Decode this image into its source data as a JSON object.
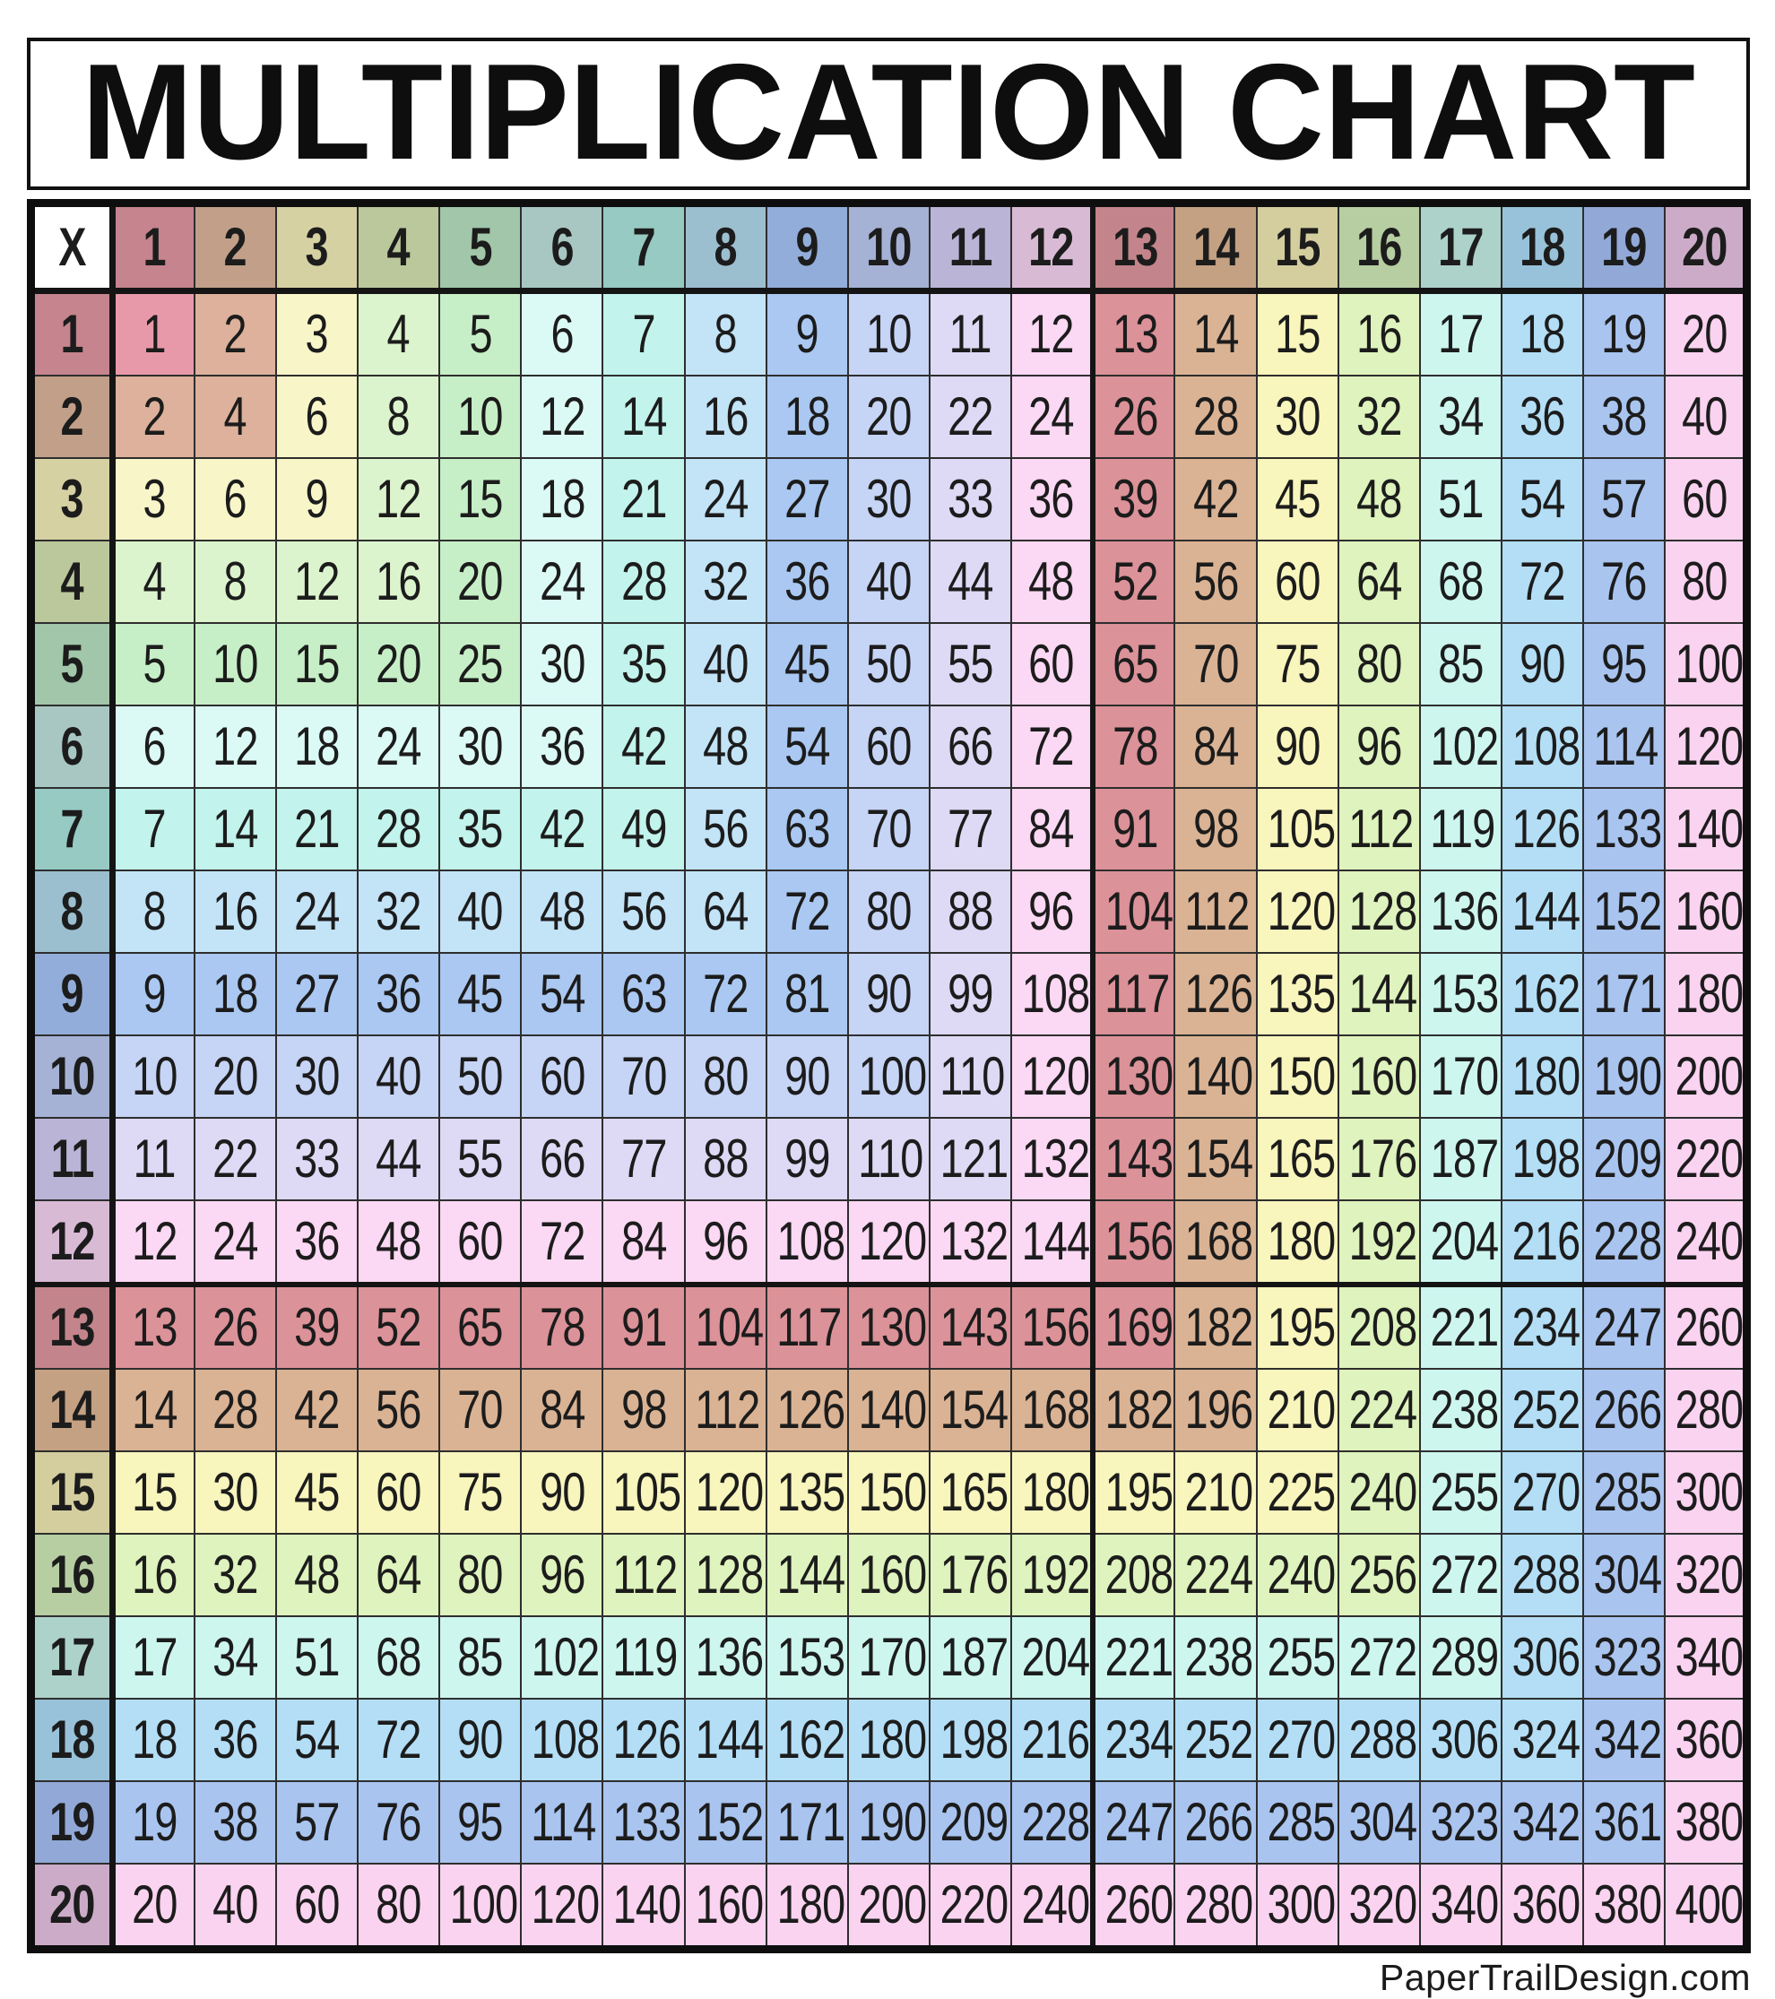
{
  "title": "MULTIPLICATION CHART",
  "footer": {
    "text": "PaperTrailDesign.com"
  },
  "chart_data": {
    "type": "table",
    "title": "MULTIPLICATION CHART",
    "corner_label": "X",
    "col_headers": [
      1,
      2,
      3,
      4,
      5,
      6,
      7,
      8,
      9,
      10,
      11,
      12,
      13,
      14,
      15,
      16,
      17,
      18,
      19,
      20
    ],
    "row_headers": [
      1,
      2,
      3,
      4,
      5,
      6,
      7,
      8,
      9,
      10,
      11,
      12,
      13,
      14,
      15,
      16,
      17,
      18,
      19,
      20
    ],
    "values": [
      [
        1,
        2,
        3,
        4,
        5,
        6,
        7,
        8,
        9,
        10,
        11,
        12,
        13,
        14,
        15,
        16,
        17,
        18,
        19,
        20
      ],
      [
        2,
        4,
        6,
        8,
        10,
        12,
        14,
        16,
        18,
        20,
        22,
        24,
        26,
        28,
        30,
        32,
        34,
        36,
        38,
        40
      ],
      [
        3,
        6,
        9,
        12,
        15,
        18,
        21,
        24,
        27,
        30,
        33,
        36,
        39,
        42,
        45,
        48,
        51,
        54,
        57,
        60
      ],
      [
        4,
        8,
        12,
        16,
        20,
        24,
        28,
        32,
        36,
        40,
        44,
        48,
        52,
        56,
        60,
        64,
        68,
        72,
        76,
        80
      ],
      [
        5,
        10,
        15,
        20,
        25,
        30,
        35,
        40,
        45,
        50,
        55,
        60,
        65,
        70,
        75,
        80,
        85,
        90,
        95,
        100
      ],
      [
        6,
        12,
        18,
        24,
        30,
        36,
        42,
        48,
        54,
        60,
        66,
        72,
        78,
        84,
        90,
        96,
        102,
        108,
        114,
        120
      ],
      [
        7,
        14,
        21,
        28,
        35,
        42,
        49,
        56,
        63,
        70,
        77,
        84,
        91,
        98,
        105,
        112,
        119,
        126,
        133,
        140
      ],
      [
        8,
        16,
        24,
        32,
        40,
        48,
        56,
        64,
        72,
        80,
        88,
        96,
        104,
        112,
        120,
        128,
        136,
        144,
        152,
        160
      ],
      [
        9,
        18,
        27,
        36,
        45,
        54,
        63,
        72,
        81,
        90,
        99,
        108,
        117,
        126,
        135,
        144,
        153,
        162,
        171,
        180
      ],
      [
        10,
        20,
        30,
        40,
        50,
        60,
        70,
        80,
        90,
        100,
        110,
        120,
        130,
        140,
        150,
        160,
        170,
        180,
        190,
        200
      ],
      [
        11,
        22,
        33,
        44,
        55,
        66,
        77,
        88,
        99,
        110,
        121,
        132,
        143,
        154,
        165,
        176,
        187,
        198,
        209,
        220
      ],
      [
        12,
        24,
        36,
        48,
        60,
        72,
        84,
        96,
        108,
        120,
        132,
        144,
        156,
        168,
        180,
        192,
        204,
        216,
        228,
        240
      ],
      [
        13,
        26,
        39,
        52,
        65,
        78,
        91,
        104,
        117,
        130,
        143,
        156,
        169,
        182,
        195,
        208,
        221,
        234,
        247,
        260
      ],
      [
        14,
        28,
        42,
        56,
        70,
        84,
        98,
        112,
        126,
        140,
        154,
        168,
        182,
        196,
        210,
        224,
        238,
        252,
        266,
        280
      ],
      [
        15,
        30,
        45,
        60,
        75,
        90,
        105,
        120,
        135,
        150,
        165,
        180,
        195,
        210,
        225,
        240,
        255,
        270,
        285,
        300
      ],
      [
        16,
        32,
        48,
        64,
        80,
        96,
        112,
        128,
        144,
        160,
        176,
        192,
        208,
        224,
        240,
        256,
        272,
        288,
        304,
        320
      ],
      [
        17,
        34,
        51,
        68,
        85,
        102,
        119,
        136,
        153,
        170,
        187,
        204,
        221,
        238,
        255,
        272,
        289,
        306,
        323,
        340
      ],
      [
        18,
        36,
        54,
        72,
        90,
        108,
        126,
        144,
        162,
        180,
        198,
        216,
        234,
        252,
        270,
        288,
        306,
        324,
        342,
        360
      ],
      [
        19,
        38,
        57,
        76,
        95,
        114,
        133,
        152,
        171,
        190,
        209,
        228,
        247,
        266,
        285,
        304,
        323,
        342,
        361,
        380
      ],
      [
        20,
        40,
        60,
        80,
        100,
        120,
        140,
        160,
        180,
        200,
        220,
        240,
        260,
        280,
        300,
        320,
        340,
        360,
        380,
        400
      ]
    ],
    "color_rule": "cell color index = max(row, col)",
    "colors": {
      "corner_bg": "#ffffff",
      "grid_line": "#2e2e2e",
      "thick_line": "#141414",
      "text": "#1c1c1c",
      "body_palette": [
        "#e899a9",
        "#ddb19b",
        "#f8f6c9",
        "#dcf4cd",
        "#c7efc7",
        "#dcfaf5",
        "#c2f3ec",
        "#c3e3f7",
        "#aac8f1",
        "#c6d4f6",
        "#ded9f5",
        "#fbd8f3",
        "#db9298",
        "#dab394",
        "#f8f5bd",
        "#def3bd",
        "#cdf6ef",
        "#b3def6",
        "#a9c4ef",
        "#fad3f0"
      ],
      "header_palette": [
        "#c5848e",
        "#c19f88",
        "#d6d1a2",
        "#bac89c",
        "#a1c6a9",
        "#a8c7c3",
        "#96cac3",
        "#9cbfd0",
        "#92add9",
        "#a5b2d5",
        "#bab4d6",
        "#d9bad5",
        "#c3858b",
        "#c4a182",
        "#d4ce9f",
        "#b6cea2",
        "#add2ca",
        "#98c2d9",
        "#92a9d7",
        "#ccabc8"
      ]
    }
  }
}
